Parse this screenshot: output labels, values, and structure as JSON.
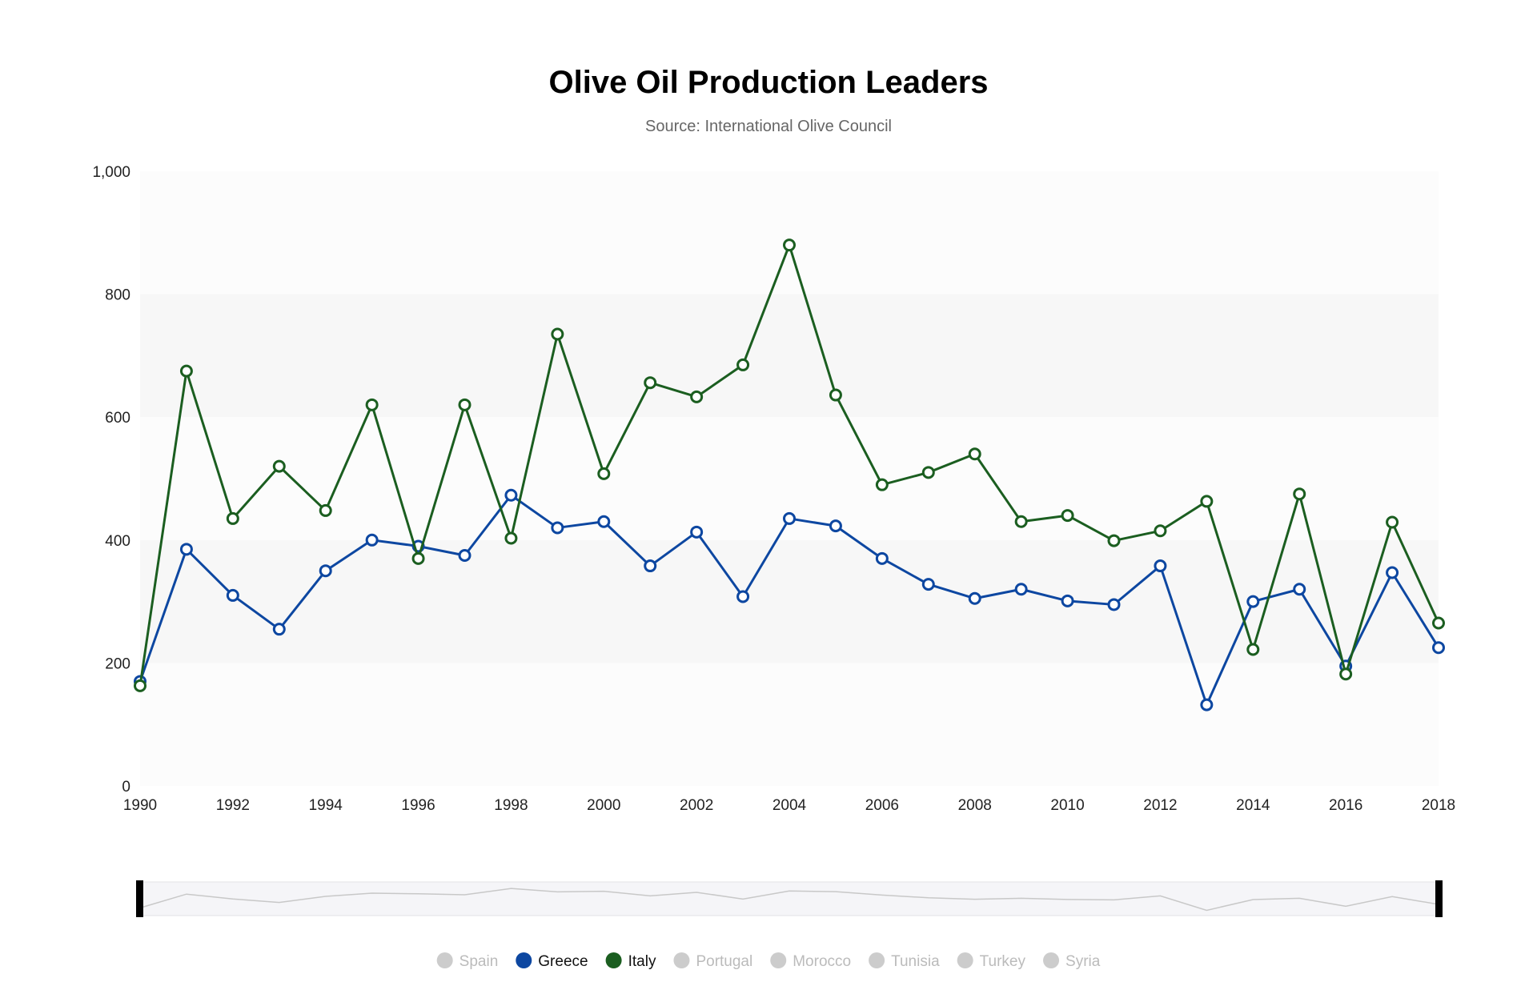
{
  "chart_data": {
    "type": "line",
    "title": "Olive Oil Production Leaders",
    "subtitle": "Source: International Olive Council",
    "xlabel": "",
    "ylabel": "",
    "ylim": [
      0,
      1000
    ],
    "yticks": [
      0,
      200,
      400,
      600,
      800,
      1000
    ],
    "ytick_labels": [
      "0",
      "200",
      "400",
      "600",
      "800",
      "1,000"
    ],
    "xlim": [
      1990,
      2018
    ],
    "xticks": [
      1990,
      1992,
      1994,
      1996,
      1998,
      2000,
      2002,
      2004,
      2006,
      2008,
      2010,
      2012,
      2014,
      2016,
      2018
    ],
    "xtick_labels": [
      "1990",
      "1992",
      "1994",
      "1996",
      "1998",
      "2000",
      "2002",
      "2004",
      "2006",
      "2008",
      "2010",
      "2012",
      "2014",
      "2016",
      "2018"
    ],
    "grid": "alternating horizontal bands",
    "legend_position": "bottom",
    "x": [
      1990,
      1991,
      1992,
      1993,
      1994,
      1995,
      1996,
      1997,
      1998,
      1999,
      2000,
      2001,
      2002,
      2003,
      2004,
      2005,
      2006,
      2007,
      2008,
      2009,
      2010,
      2011,
      2012,
      2013,
      2014,
      2015,
      2016,
      2017,
      2018
    ],
    "series": [
      {
        "name": "Greece",
        "color": "#0d47a1",
        "values": [
          170,
          385,
          310,
          255,
          350,
          400,
          390,
          375,
          473,
          420,
          430,
          358,
          413,
          308,
          435,
          423,
          370,
          328,
          305,
          320,
          301,
          295,
          358,
          132,
          300,
          320,
          195,
          347,
          225
        ]
      },
      {
        "name": "Italy",
        "color": "#1b5e20",
        "values": [
          163,
          675,
          435,
          520,
          448,
          620,
          370,
          620,
          403,
          735,
          508,
          656,
          633,
          685,
          880,
          636,
          490,
          510,
          540,
          430,
          440,
          399,
          415,
          463,
          222,
          475,
          182,
          429,
          265
        ]
      }
    ],
    "navigator_series": [
      170,
      385,
      310,
      255,
      350,
      400,
      390,
      375,
      473,
      420,
      430,
      358,
      413,
      308,
      435,
      423,
      370,
      328,
      305,
      320,
      301,
      295,
      358,
      132,
      300,
      320,
      195,
      347,
      225
    ]
  },
  "legend": {
    "items": [
      {
        "label": "Spain",
        "active": false,
        "color": "#cccccc"
      },
      {
        "label": "Greece",
        "active": true,
        "color": "#0d47a1"
      },
      {
        "label": "Italy",
        "active": true,
        "color": "#1b5e20"
      },
      {
        "label": "Portugal",
        "active": false,
        "color": "#cccccc"
      },
      {
        "label": "Morocco",
        "active": false,
        "color": "#cccccc"
      },
      {
        "label": "Tunisia",
        "active": false,
        "color": "#cccccc"
      },
      {
        "label": "Turkey",
        "active": false,
        "color": "#cccccc"
      },
      {
        "label": "Syria",
        "active": false,
        "color": "#cccccc"
      }
    ]
  }
}
